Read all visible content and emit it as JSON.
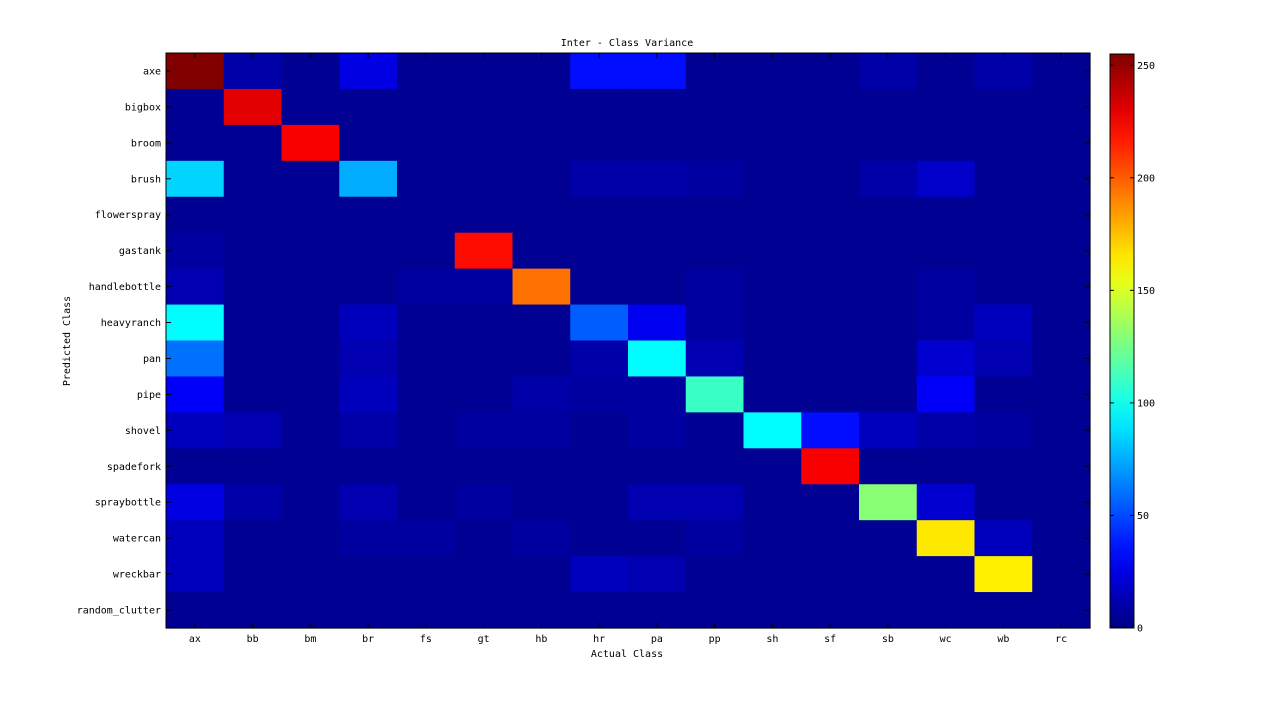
{
  "chart_data": {
    "type": "heatmap",
    "title": "Inter - Class Variance",
    "xlabel": "Actual Class",
    "ylabel": "Predicted Class",
    "x_categories": [
      "ax",
      "bb",
      "bm",
      "br",
      "fs",
      "gt",
      "hb",
      "hr",
      "pa",
      "pp",
      "sh",
      "sf",
      "sb",
      "wc",
      "wb",
      "rc"
    ],
    "y_categories": [
      "axe",
      "bigbox",
      "broom",
      "brush",
      "flowerspray",
      "gastank",
      "handlebottle",
      "heavyranch",
      "pan",
      "pipe",
      "shovel",
      "spadefork",
      "spraybottle",
      "watercan",
      "wreckbar",
      "random_clutter"
    ],
    "values": [
      [
        255,
        10,
        5,
        25,
        5,
        5,
        5,
        35,
        35,
        5,
        5,
        5,
        10,
        5,
        10,
        5
      ],
      [
        5,
        230,
        5,
        5,
        5,
        5,
        5,
        5,
        5,
        5,
        5,
        5,
        5,
        5,
        5,
        5
      ],
      [
        5,
        5,
        225,
        5,
        5,
        5,
        5,
        5,
        5,
        5,
        5,
        5,
        5,
        5,
        5,
        5
      ],
      [
        85,
        5,
        5,
        75,
        5,
        5,
        5,
        10,
        10,
        8,
        5,
        5,
        10,
        18,
        5,
        5
      ],
      [
        5,
        5,
        5,
        5,
        5,
        5,
        5,
        5,
        5,
        5,
        5,
        5,
        5,
        5,
        5,
        5
      ],
      [
        8,
        5,
        5,
        5,
        5,
        220,
        5,
        5,
        5,
        5,
        5,
        5,
        5,
        5,
        5,
        5
      ],
      [
        12,
        5,
        5,
        5,
        8,
        8,
        195,
        5,
        5,
        8,
        5,
        5,
        5,
        8,
        5,
        5
      ],
      [
        95,
        5,
        5,
        15,
        5,
        5,
        5,
        55,
        28,
        8,
        5,
        5,
        5,
        8,
        15,
        5
      ],
      [
        60,
        5,
        5,
        12,
        5,
        5,
        5,
        10,
        95,
        12,
        5,
        5,
        5,
        20,
        12,
        5
      ],
      [
        30,
        5,
        5,
        15,
        5,
        5,
        10,
        8,
        8,
        110,
        5,
        5,
        5,
        30,
        5,
        5
      ],
      [
        15,
        12,
        5,
        10,
        5,
        8,
        8,
        5,
        8,
        5,
        95,
        35,
        15,
        10,
        8,
        5
      ],
      [
        5,
        5,
        5,
        5,
        5,
        5,
        5,
        5,
        5,
        5,
        5,
        225,
        5,
        5,
        5,
        5
      ],
      [
        25,
        10,
        5,
        12,
        5,
        8,
        5,
        5,
        12,
        12,
        5,
        5,
        130,
        20,
        5,
        5
      ],
      [
        15,
        5,
        5,
        8,
        8,
        5,
        8,
        5,
        5,
        8,
        5,
        5,
        5,
        165,
        15,
        5
      ],
      [
        15,
        5,
        5,
        5,
        5,
        5,
        5,
        15,
        12,
        5,
        5,
        5,
        5,
        5,
        163,
        5
      ],
      [
        5,
        5,
        5,
        5,
        5,
        5,
        5,
        5,
        5,
        5,
        5,
        5,
        5,
        5,
        5,
        5
      ]
    ],
    "colormap": "jet",
    "clim": [
      0,
      255
    ],
    "colorbar_ticks": [
      "0",
      "50",
      "100",
      "150",
      "200",
      "250"
    ],
    "colorbar_tick_values": [
      0,
      50,
      100,
      150,
      200,
      250
    ]
  }
}
